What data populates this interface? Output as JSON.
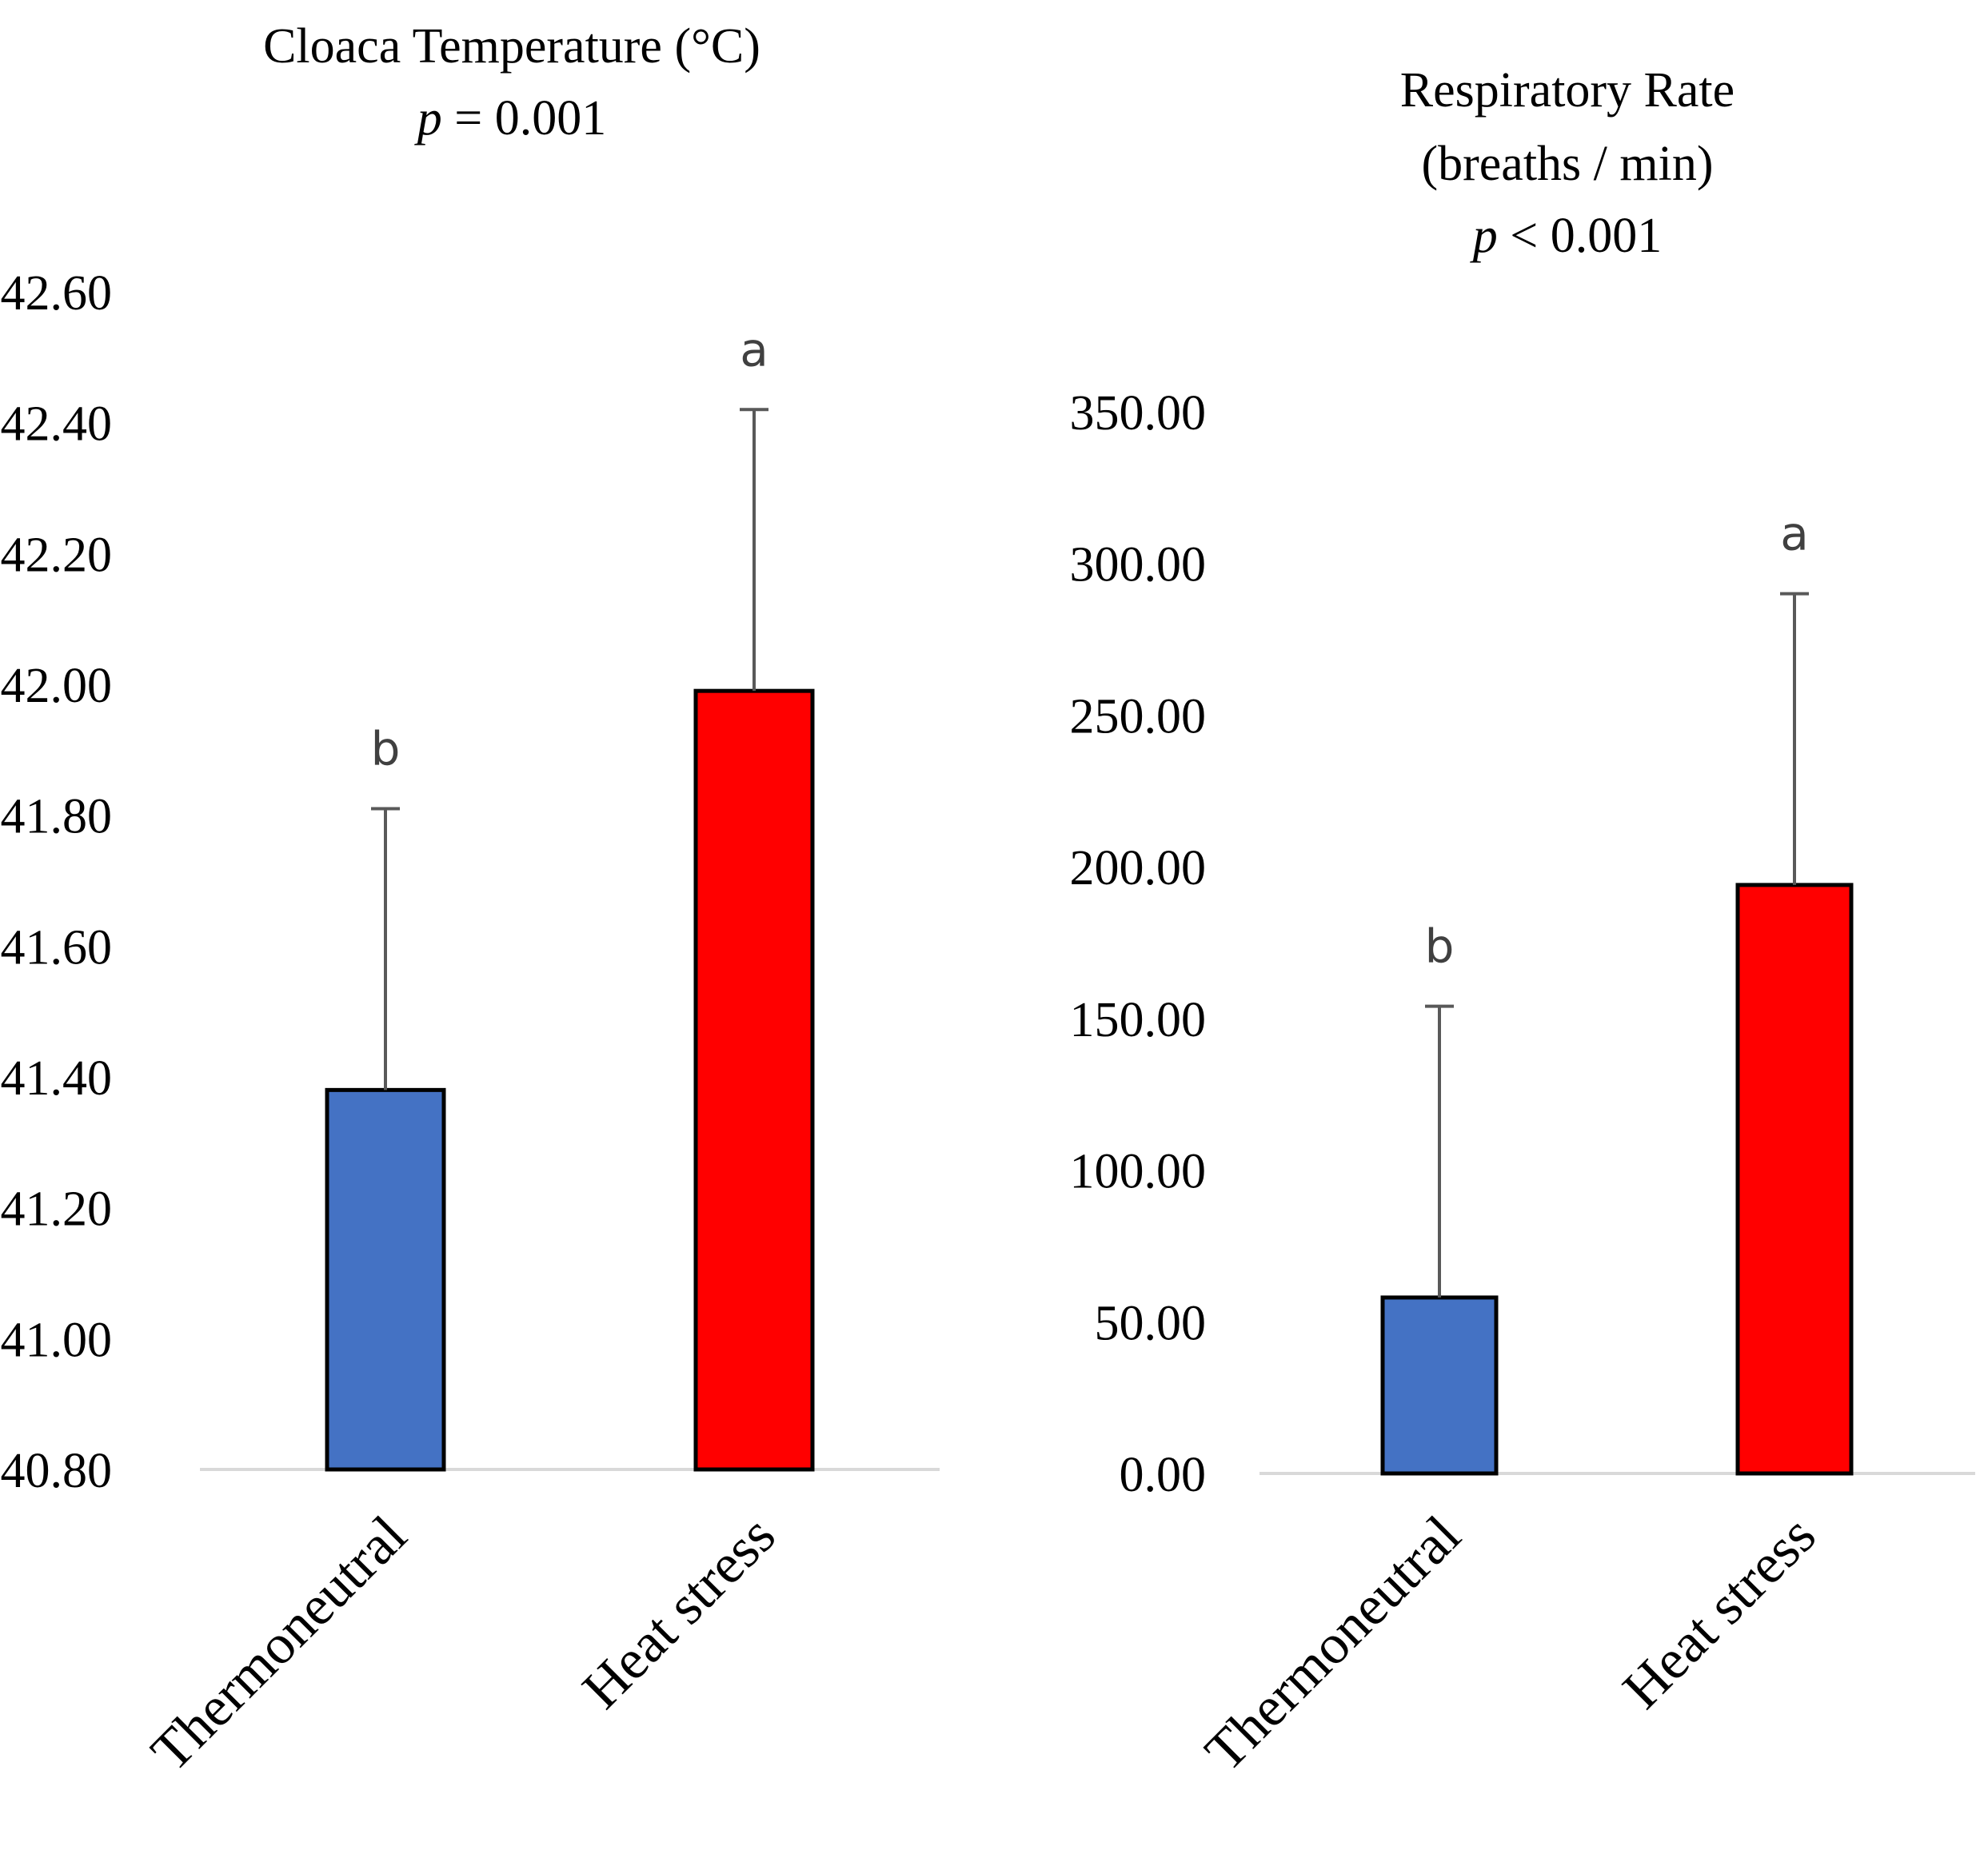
{
  "chart_data": [
    {
      "type": "bar",
      "title": "Cloaca Temperature (°C)",
      "p_label": "p",
      "p_rest": " = 0.001",
      "xlabel": "",
      "ylabel": "",
      "categories": [
        "Thermoneutral",
        "Heat stress"
      ],
      "values": [
        41.38,
        41.99
      ],
      "error_plus": [
        0.43,
        0.43
      ],
      "significance": [
        "b",
        "a"
      ],
      "colors": [
        "#4472C4",
        "#FF0000"
      ],
      "ylim": [
        40.8,
        42.6
      ],
      "yticks": [
        "42.60",
        "42.40",
        "42.20",
        "42.00",
        "41.80",
        "41.60",
        "41.40",
        "41.20",
        "41.00",
        "40.80"
      ],
      "ytick_values": [
        42.6,
        42.4,
        42.2,
        42.0,
        41.8,
        41.6,
        41.4,
        41.2,
        41.0,
        40.8
      ]
    },
    {
      "type": "bar",
      "title_line1": "Respiratory Rate",
      "title_line2": "(breaths / min)",
      "p_label": "p",
      "p_rest": " < 0.001",
      "xlabel": "",
      "ylabel": "",
      "categories": [
        "Thermoneutral",
        "Heat stress"
      ],
      "values": [
        58,
        194
      ],
      "error_plus": [
        96,
        96
      ],
      "significance": [
        "b",
        "a"
      ],
      "colors": [
        "#4472C4",
        "#FF0000"
      ],
      "ylim": [
        0,
        350
      ],
      "yticks": [
        "350.00",
        "300.00",
        "250.00",
        "200.00",
        "150.00",
        "100.00",
        "50.00",
        "0.00"
      ],
      "ytick_values": [
        350,
        300,
        250,
        200,
        150,
        100,
        50,
        0
      ]
    }
  ]
}
